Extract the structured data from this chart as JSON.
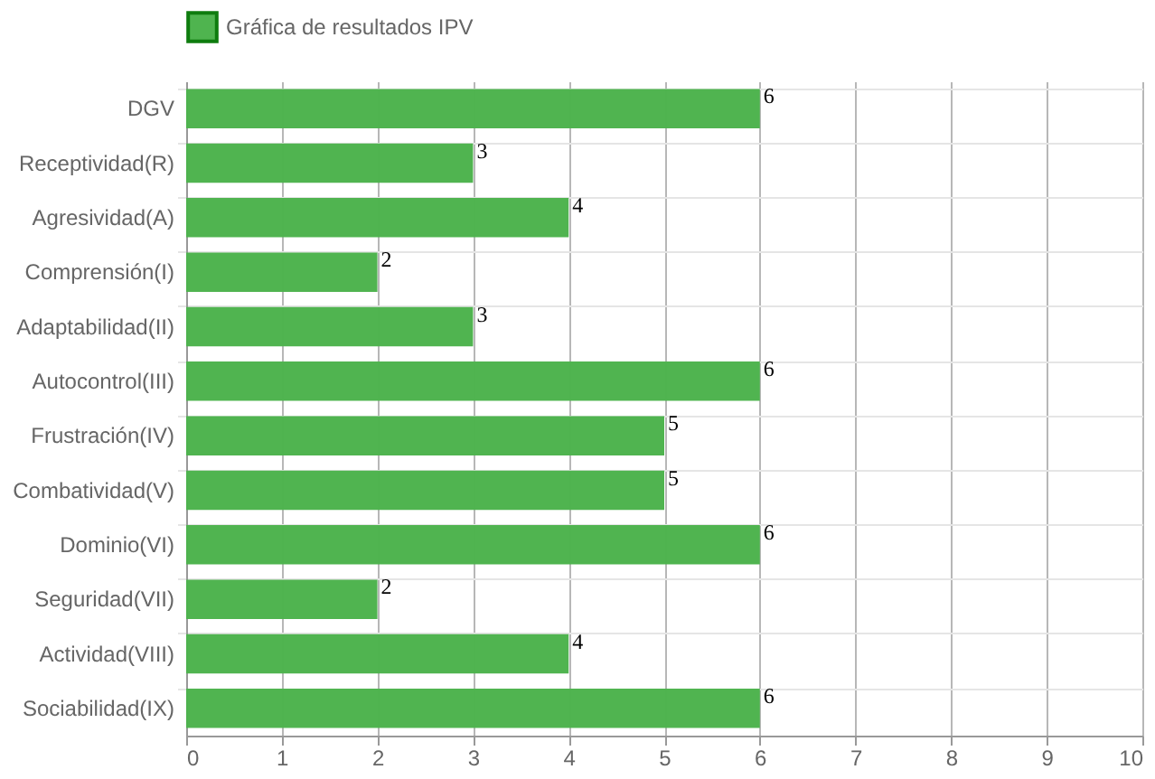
{
  "chart_data": {
    "type": "bar",
    "orientation": "horizontal",
    "categories": [
      "DGV",
      "Receptividad(R)",
      "Agresividad(A)",
      "Comprensión(I)",
      "Adaptabilidad(II)",
      "Autocontrol(III)",
      "Frustración(IV)",
      "Combatividad(V)",
      "Dominio(VI)",
      "Seguridad(VII)",
      "Actividad(VIII)",
      "Sociabilidad(IX)"
    ],
    "series": [
      {
        "name": "Gráfica de resultados IPV",
        "color": "#4cb34c",
        "values": [
          6,
          3,
          4,
          2,
          3,
          6,
          5,
          5,
          6,
          2,
          4,
          6
        ]
      }
    ],
    "xlim": [
      0,
      10
    ],
    "xticks": [
      0,
      1,
      2,
      3,
      4,
      5,
      6,
      7,
      8,
      9,
      10
    ],
    "grid": true,
    "legend": "top",
    "data_labels": true
  }
}
